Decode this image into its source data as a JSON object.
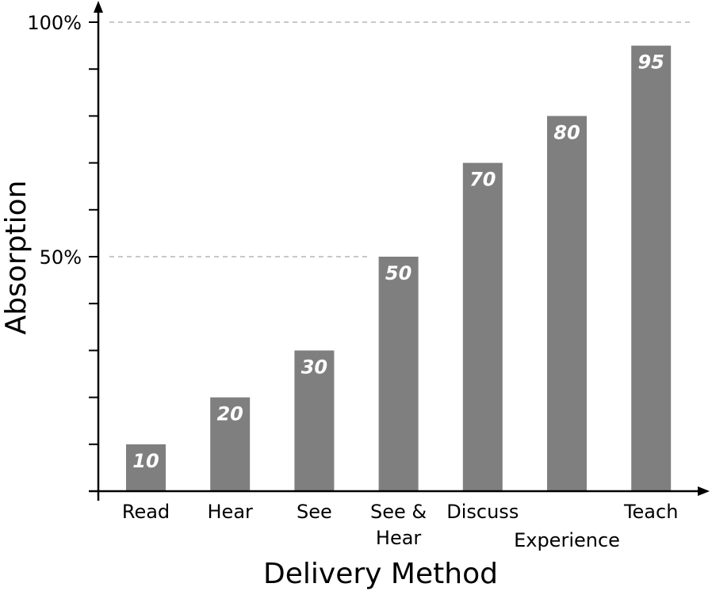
{
  "chart_data": {
    "type": "bar",
    "categories": [
      "Read",
      "Hear",
      "See",
      "See & Hear",
      "Discuss",
      "Experience",
      "Teach"
    ],
    "category_label_lines": [
      [
        "Read"
      ],
      [
        "Hear"
      ],
      [
        "See"
      ],
      [
        "See &",
        "Hear"
      ],
      [
        "Discuss"
      ],
      [
        "Experience"
      ],
      [
        "Teach"
      ]
    ],
    "values": [
      10,
      20,
      30,
      50,
      70,
      80,
      95
    ],
    "data_labels": [
      "10",
      "20",
      "30",
      "50",
      "70",
      "80",
      "95"
    ],
    "title": "",
    "xlabel": "Delivery Method",
    "ylabel": "Absorption",
    "ylim": [
      0,
      100
    ],
    "y_tick_values": [
      0,
      10,
      20,
      30,
      40,
      50,
      60,
      70,
      80,
      90,
      100
    ],
    "y_tick_labels": [
      {
        "value": 50,
        "label": "50%"
      },
      {
        "value": 100,
        "label": "100%"
      }
    ],
    "reference_lines": [
      50,
      100
    ],
    "grid": false,
    "legend": "none",
    "colors": {
      "bar": "#7f7f7f",
      "bar_label": "#ffffff",
      "reference_line": "#c8c8c8",
      "axis": "#000000"
    }
  }
}
